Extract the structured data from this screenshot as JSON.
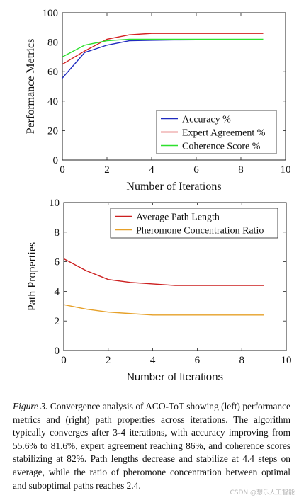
{
  "chart_data": [
    {
      "type": "line",
      "title": "",
      "xlabel": "Number of Iterations",
      "ylabel": "Performance Metrics",
      "xlim": [
        0,
        10
      ],
      "ylim": [
        0,
        100
      ],
      "xticks": [
        0,
        2,
        4,
        6,
        8,
        10
      ],
      "yticks": [
        0,
        20,
        40,
        60,
        80,
        100
      ],
      "legend_position": "bottom-right",
      "x": [
        0,
        1,
        2,
        3,
        4,
        5,
        6,
        7,
        8,
        9
      ],
      "series": [
        {
          "name": "Accuracy %",
          "color": "#1f2bbf",
          "values": [
            55.6,
            73,
            78,
            81,
            81.3,
            81.5,
            81.6,
            81.6,
            81.6,
            81.6
          ]
        },
        {
          "name": "Expert Agreement %",
          "color": "#d42020",
          "values": [
            65,
            74,
            82,
            85,
            86,
            86,
            86,
            86,
            86,
            86
          ]
        },
        {
          "name": "Coherence Score %",
          "color": "#2de02d",
          "values": [
            70,
            78,
            81,
            82,
            82,
            82,
            82,
            82,
            82,
            82
          ]
        }
      ]
    },
    {
      "type": "line",
      "title": "",
      "xlabel": "Number of Iterations",
      "ylabel": "Path Properties",
      "xlim": [
        0,
        10
      ],
      "ylim": [
        0,
        10
      ],
      "xticks": [
        0,
        2,
        4,
        6,
        8,
        10
      ],
      "yticks": [
        0,
        2,
        4,
        6,
        8,
        10
      ],
      "legend_position": "top-right",
      "x": [
        0,
        1,
        2,
        3,
        4,
        5,
        6,
        7,
        8,
        9
      ],
      "series": [
        {
          "name": "Average Path Length",
          "color": "#cc1f1f",
          "values": [
            6.2,
            5.4,
            4.8,
            4.6,
            4.5,
            4.4,
            4.4,
            4.4,
            4.4,
            4.4
          ]
        },
        {
          "name": "Pheromone Concentration Ratio",
          "color": "#e6a028",
          "values": [
            3.1,
            2.8,
            2.6,
            2.5,
            2.4,
            2.4,
            2.4,
            2.4,
            2.4,
            2.4
          ]
        }
      ]
    }
  ],
  "caption": {
    "figure_label": "Figure 3.",
    "text": " Convergence analysis of ACO-ToT showing (left) performance metrics and (right) path properties across iterations. The algorithm typically converges after 3-4 iterations, with accuracy improving from 55.6% to 81.6%, expert agreement reaching 86%, and coherence scores stabilizing at 82%. Path lengths decrease and stabilize at 4.4 steps on average, while the ratio of pheromone concentration between optimal and suboptimal paths reaches 2.4."
  },
  "watermark": "CSDN @想乐人工智能"
}
